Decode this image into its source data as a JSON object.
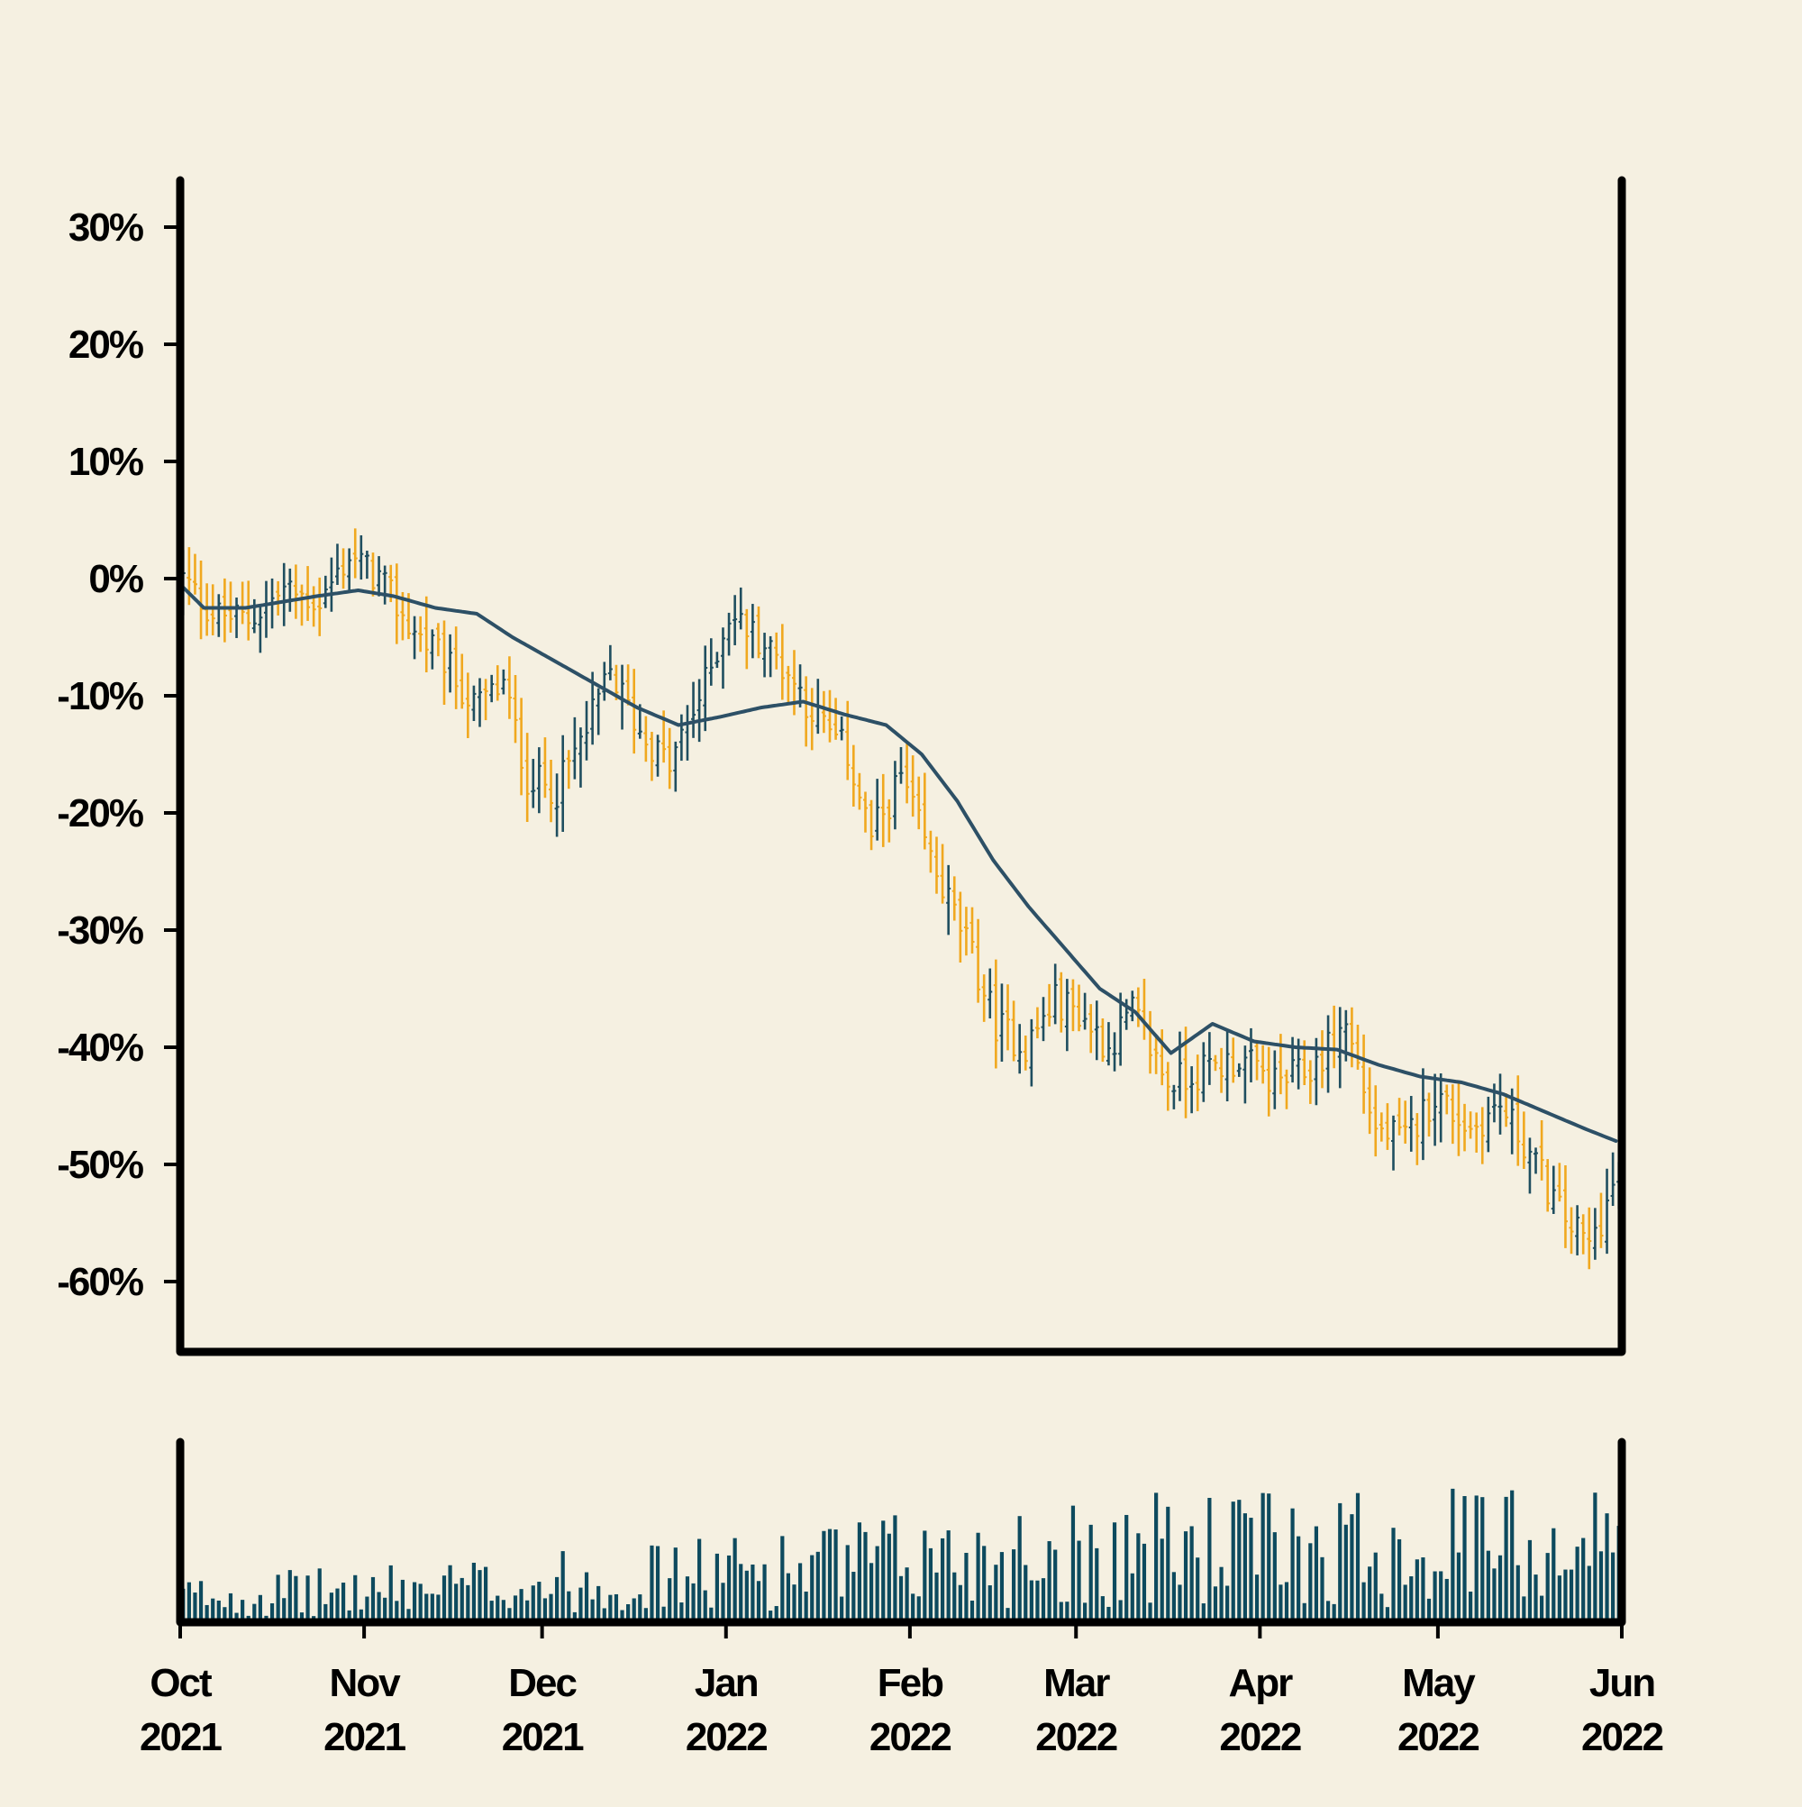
{
  "chart_data": {
    "type": "ohlc",
    "title": "",
    "xlabel": "",
    "ylabel": "",
    "ylim": [
      -66,
      34
    ],
    "y_ticks": [
      30,
      20,
      10,
      0,
      -10,
      -20,
      -30,
      -40,
      -50,
      -60
    ],
    "y_tick_format": "%",
    "x_range": [
      "2021-10-01",
      "2022-06-01"
    ],
    "x_ticks": [
      {
        "date": "2021-10-01",
        "month": "Oct",
        "year": "2021"
      },
      {
        "date": "2021-11-01",
        "month": "Nov",
        "year": "2021"
      },
      {
        "date": "2021-12-01",
        "month": "Dec",
        "year": "2021"
      },
      {
        "date": "2022-01-01",
        "month": "Jan",
        "year": "2022"
      },
      {
        "date": "2022-02-01",
        "month": "Feb",
        "year": "2022"
      },
      {
        "date": "2022-03-01",
        "month": "Mar",
        "year": "2022"
      },
      {
        "date": "2022-04-01",
        "month": "Apr",
        "year": "2022"
      },
      {
        "date": "2022-05-01",
        "month": "May",
        "year": "2022"
      },
      {
        "date": "2022-06-01",
        "month": "Jun",
        "year": "2022"
      }
    ],
    "grid": false,
    "legend": "none",
    "colors": {
      "up": "#1f4e5f",
      "down": "#f0a81f",
      "moving_average": "#2d5066",
      "volume": "#0d4a5e",
      "axis": "#000000",
      "background": "#f5f0e1"
    },
    "price_path": [
      [
        "2021-10-01",
        0
      ],
      [
        "2021-10-06",
        -3
      ],
      [
        "2021-10-12",
        -3.5
      ],
      [
        "2021-10-18",
        -1
      ],
      [
        "2021-10-24",
        -2
      ],
      [
        "2021-10-29",
        2
      ],
      [
        "2021-11-03",
        0
      ],
      [
        "2021-11-08",
        -4
      ],
      [
        "2021-11-14",
        -7
      ],
      [
        "2021-11-19",
        -11
      ],
      [
        "2021-11-24",
        -9
      ],
      [
        "2021-11-28",
        -17
      ],
      [
        "2021-12-03",
        -18
      ],
      [
        "2021-12-08",
        -13
      ],
      [
        "2021-12-12",
        -8
      ],
      [
        "2021-12-17",
        -13
      ],
      [
        "2021-12-22",
        -16
      ],
      [
        "2021-12-28",
        -9
      ],
      [
        "2022-01-01",
        -3
      ],
      [
        "2022-01-06",
        -5
      ],
      [
        "2022-01-11",
        -8
      ],
      [
        "2022-01-16",
        -12
      ],
      [
        "2022-01-21",
        -15
      ],
      [
        "2022-01-25",
        -22
      ],
      [
        "2022-01-30",
        -17
      ],
      [
        "2022-02-04",
        -24
      ],
      [
        "2022-02-10",
        -31
      ],
      [
        "2022-02-15",
        -38
      ],
      [
        "2022-02-20",
        -40
      ],
      [
        "2022-02-25",
        -36
      ],
      [
        "2022-03-01",
        -37
      ],
      [
        "2022-03-06",
        -40
      ],
      [
        "2022-03-10",
        -37
      ],
      [
        "2022-03-16",
        -43
      ],
      [
        "2022-03-22",
        -42
      ],
      [
        "2022-03-28",
        -41
      ],
      [
        "2022-04-03",
        -43
      ],
      [
        "2022-04-09",
        -42
      ],
      [
        "2022-04-15",
        -38
      ],
      [
        "2022-04-20",
        -47
      ],
      [
        "2022-04-25",
        -48
      ],
      [
        "2022-04-30",
        -44
      ],
      [
        "2022-05-06",
        -47
      ],
      [
        "2022-05-11",
        -45
      ],
      [
        "2022-05-16",
        -49
      ],
      [
        "2022-05-21",
        -54
      ],
      [
        "2022-05-26",
        -57
      ],
      [
        "2022-05-31",
        -51
      ]
    ],
    "moving_average": [
      [
        "2021-10-01",
        -0.5
      ],
      [
        "2021-10-05",
        -2.5
      ],
      [
        "2021-10-12",
        -2.5
      ],
      [
        "2021-10-18",
        -2
      ],
      [
        "2021-10-24",
        -1.5
      ],
      [
        "2021-10-31",
        -1
      ],
      [
        "2021-11-06",
        -1.5
      ],
      [
        "2021-11-13",
        -2.5
      ],
      [
        "2021-11-20",
        -3
      ],
      [
        "2021-11-26",
        -5
      ],
      [
        "2021-12-03",
        -7
      ],
      [
        "2021-12-10",
        -9
      ],
      [
        "2021-12-17",
        -11
      ],
      [
        "2021-12-24",
        -12.5
      ],
      [
        "2021-12-31",
        -11.8
      ],
      [
        "2022-01-07",
        -11
      ],
      [
        "2022-01-14",
        -10.5
      ],
      [
        "2022-01-21",
        -11.6
      ],
      [
        "2022-01-28",
        -12.5
      ],
      [
        "2022-02-03",
        -15
      ],
      [
        "2022-02-09",
        -19
      ],
      [
        "2022-02-15",
        -24
      ],
      [
        "2022-02-21",
        -28
      ],
      [
        "2022-02-27",
        -31.5
      ],
      [
        "2022-03-05",
        -35
      ],
      [
        "2022-03-11",
        -37
      ],
      [
        "2022-03-17",
        -40.5
      ],
      [
        "2022-03-24",
        -38
      ],
      [
        "2022-03-31",
        -39.5
      ],
      [
        "2022-04-07",
        -40
      ],
      [
        "2022-04-14",
        -40.2
      ],
      [
        "2022-04-21",
        -41.5
      ],
      [
        "2022-04-28",
        -42.5
      ],
      [
        "2022-05-05",
        -43
      ],
      [
        "2022-05-12",
        -44
      ],
      [
        "2022-05-19",
        -45.5
      ],
      [
        "2022-05-26",
        -47
      ],
      [
        "2022-05-31",
        -48
      ]
    ],
    "volume_profile": [
      [
        "2021-10-01",
        0.2
      ],
      [
        "2021-11-01",
        0.24
      ],
      [
        "2021-12-01",
        0.3
      ],
      [
        "2022-01-01",
        0.38
      ],
      [
        "2022-02-01",
        0.48
      ],
      [
        "2022-03-01",
        0.55
      ],
      [
        "2022-04-01",
        0.58
      ],
      [
        "2022-05-01",
        0.6
      ],
      [
        "2022-06-01",
        0.62
      ]
    ]
  }
}
